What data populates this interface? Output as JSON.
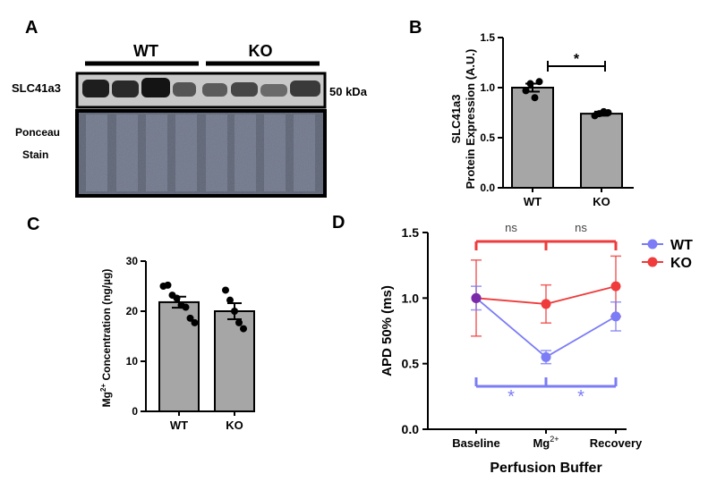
{
  "panels": {
    "a": "A",
    "b": "B",
    "c": "C",
    "d": "D"
  },
  "blot": {
    "group_wt": "WT",
    "group_ko": "KO",
    "protein_label": "SLC41a3",
    "kda_label": "50 kDa",
    "ponceau_line1": "Ponceau",
    "ponceau_line2": "Stain"
  },
  "colors": {
    "bar": "#a6a6a6",
    "wt": "#7b7cf6",
    "ko": "#ef3b3b",
    "overlap": "#7a29a9"
  },
  "chart_data": [
    {
      "panel": "B",
      "type": "bar",
      "categories": [
        "WT",
        "KO"
      ],
      "values": [
        1.0,
        0.74
      ],
      "sem": [
        0.04,
        0.02
      ],
      "points": [
        [
          0.97,
          1.04,
          0.9,
          1.06
        ],
        [
          0.72,
          0.74,
          0.76,
          0.75
        ]
      ],
      "ylabel_line1": "SLC41a3",
      "ylabel_line2": "Protein Expression (A.U.)",
      "ylim": [
        0,
        1.5
      ],
      "yticks": [
        "0.0",
        "0.5",
        "1.0",
        "1.5"
      ],
      "significance": "*"
    },
    {
      "panel": "C",
      "type": "bar",
      "categories": [
        "WT",
        "KO"
      ],
      "values": [
        21.8,
        20.0
      ],
      "sem": [
        1.1,
        1.6
      ],
      "points": [
        [
          25,
          25.2,
          23.2,
          22.6,
          21.2,
          20.8,
          18.6,
          17.7
        ],
        [
          24.2,
          22.2,
          20.0,
          17.7,
          16.5
        ]
      ],
      "ylabel_base": "Mg",
      "ylabel_sup": "2+",
      "ylabel_rest": " Concentration (ng/µg)",
      "ylim": [
        0,
        30
      ],
      "yticks": [
        "0",
        "10",
        "20",
        "30"
      ]
    },
    {
      "panel": "D",
      "type": "line",
      "categories": [
        "Baseline",
        "Mg",
        "Recovery"
      ],
      "cat_sup": [
        "",
        "2+",
        ""
      ],
      "series": [
        {
          "name": "WT",
          "values": [
            1.0,
            0.55,
            0.86
          ],
          "errors": [
            0.09,
            0.05,
            0.11
          ]
        },
        {
          "name": "KO",
          "values": [
            1.0,
            0.955,
            1.09
          ],
          "errors": [
            0.29,
            0.145,
            0.23
          ]
        }
      ],
      "xlabel": "Perfusion Buffer",
      "ylabel": "APD 50% (ms)",
      "ylim": [
        0,
        1.5
      ],
      "yticks": [
        "0.0",
        "0.5",
        "1.0",
        "1.5"
      ],
      "legend_placement": "top-right",
      "annotations": {
        "top_left": "ns",
        "top_right": "ns",
        "bottom_left": "*",
        "bottom_right": "*"
      }
    }
  ]
}
